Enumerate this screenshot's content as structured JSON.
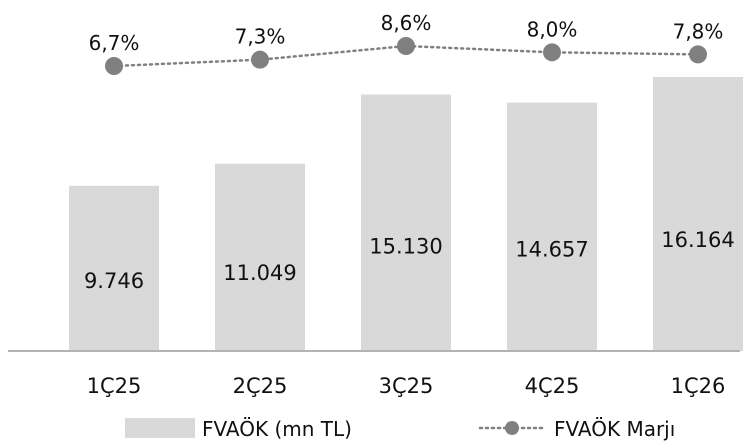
{
  "chart_data": {
    "type": "bar",
    "categories": [
      "1Ç25",
      "2Ç25",
      "3Ç25",
      "4Ç25",
      "1Ç26"
    ],
    "series": [
      {
        "name": "FVAÖK (mn TL)",
        "type": "bar",
        "values": [
          9746,
          11049,
          15130,
          14657,
          16164
        ],
        "labels": [
          "9.746",
          "11.049",
          "15.130",
          "14.657",
          "16.164"
        ],
        "color": "#d9d9d9"
      },
      {
        "name": "FVAÖK Marjı",
        "type": "line",
        "style": "dotted",
        "marker": "circle",
        "values": [
          6.7,
          7.3,
          8.6,
          8.0,
          7.8
        ],
        "labels": [
          "6,7%",
          "7,3%",
          "8,6%",
          "8,0%",
          "7,8%"
        ],
        "color": "#808080"
      }
    ],
    "legend_position": "bottom",
    "grid": false
  }
}
